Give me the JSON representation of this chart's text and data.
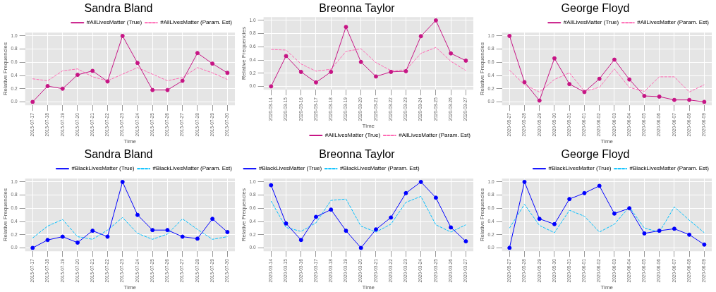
{
  "chart_data": [
    {
      "type": "line",
      "title": "Sandra Bland",
      "xlabel": "Time",
      "ylabel": "Relative Frequencies",
      "categories": [
        "2015-07-17",
        "2015-07-18",
        "2015-07-19",
        "2015-07-20",
        "2015-07-21",
        "2015-07-22",
        "2015-07-23",
        "2015-07-24",
        "2015-07-25",
        "2015-07-26",
        "2015-07-27",
        "2015-07-28",
        "2015-07-29",
        "2015-07-30"
      ],
      "ylim": [
        -0.05,
        1.05
      ],
      "yticks": [
        {
          "value": 0,
          "label": "0.0"
        },
        {
          "value": 0.2,
          "label": "0.2"
        },
        {
          "value": 0.4,
          "label": "0.4"
        },
        {
          "value": 0.6,
          "label": "0.6"
        },
        {
          "value": 0.8,
          "label": "0.8"
        },
        {
          "value": 1,
          "label": "1.0"
        }
      ],
      "grid": true,
      "legend": "top right",
      "series": [
        {
          "name": "#AllLivesMatter (True)",
          "color": "#c71585",
          "marker": "circle",
          "line_style": "solid",
          "values": [
            0,
            0.24,
            0.2,
            0.41,
            0.47,
            0.31,
            1.0,
            0.59,
            0.18,
            0.18,
            0.32,
            0.74,
            0.58,
            0.44
          ]
        },
        {
          "name": "#AllLivesMatter (Param. Est)",
          "color": "#ff69b4",
          "marker": "none",
          "line_style": "dashed",
          "values": [
            0.35,
            0.32,
            0.47,
            0.5,
            0.38,
            0.32,
            0.42,
            0.52,
            0.42,
            0.32,
            0.37,
            0.52,
            0.44,
            0.34
          ]
        }
      ]
    },
    {
      "type": "line",
      "title": "Breonna Taylor",
      "xlabel": "Time",
      "ylabel": "Relative Frequencies",
      "categories": [
        "2020-03-14",
        "2020-03-15",
        "2020-03-16",
        "2020-03-17",
        "2020-03-18",
        "2020-03-19",
        "2020-03-20",
        "2020-03-21",
        "2020-03-22",
        "2020-03-23",
        "2020-03-24",
        "2020-03-25",
        "2020-03-26",
        "2020-03-27"
      ],
      "ylim": [
        -0.05,
        1.05
      ],
      "yticks": [
        {
          "value": 0,
          "label": "0.0"
        },
        {
          "value": 0.2,
          "label": "0.2"
        },
        {
          "value": 0.4,
          "label": "0.4"
        },
        {
          "value": 0.6,
          "label": "0.6"
        },
        {
          "value": 0.8,
          "label": "0.8"
        },
        {
          "value": 1,
          "label": "1.0"
        }
      ],
      "grid": true,
      "legend": "bottom right",
      "series": [
        {
          "name": "#AllLivesMatter (True)",
          "color": "#c71585",
          "marker": "circle",
          "line_style": "solid",
          "values": [
            0,
            0.46,
            0.22,
            0.06,
            0.22,
            0.9,
            0.37,
            0.15,
            0.22,
            0.23,
            0.76,
            1.0,
            0.5,
            0.39
          ]
        },
        {
          "name": "#AllLivesMatter (Param. Est)",
          "color": "#ff69b4",
          "marker": "none",
          "line_style": "dashed",
          "values": [
            0.56,
            0.55,
            0.34,
            0.23,
            0.26,
            0.53,
            0.57,
            0.36,
            0.24,
            0.25,
            0.5,
            0.59,
            0.38,
            0.24
          ]
        }
      ]
    },
    {
      "type": "line",
      "title": "George Floyd",
      "xlabel": "Time",
      "ylabel": "Relative Frequencies",
      "categories": [
        "2020-05-27",
        "2020-05-28",
        "2020-05-29",
        "2020-05-30",
        "2020-05-31",
        "2020-06-01",
        "2020-06-02",
        "2020-06-03",
        "2020-06-04",
        "2020-06-05",
        "2020-06-06",
        "2020-06-07",
        "2020-06-08",
        "2020-06-09"
      ],
      "ylim": [
        -0.05,
        1.05
      ],
      "yticks": [
        {
          "value": 0,
          "label": "0.0"
        },
        {
          "value": 0.2,
          "label": "0.2"
        },
        {
          "value": 0.4,
          "label": "0.4"
        },
        {
          "value": 0.6,
          "label": "0.6"
        },
        {
          "value": 0.8,
          "label": "0.8"
        },
        {
          "value": 1,
          "label": "1.0"
        }
      ],
      "grid": true,
      "legend": "top right",
      "series": [
        {
          "name": "#AllLivesMatter (True)",
          "color": "#c71585",
          "marker": "circle",
          "line_style": "solid",
          "values": [
            1.0,
            0.3,
            0.02,
            0.66,
            0.27,
            0.15,
            0.35,
            0.64,
            0.34,
            0.09,
            0.08,
            0.03,
            0.03,
            0
          ]
        },
        {
          "name": "#AllLivesMatter (Param. Est)",
          "color": "#ff69b4",
          "marker": "none",
          "line_style": "dashed",
          "values": [
            0.48,
            0.26,
            0.15,
            0.34,
            0.44,
            0.16,
            0.22,
            0.5,
            0.22,
            0.16,
            0.38,
            0.38,
            0.15,
            0.26
          ]
        }
      ]
    },
    {
      "type": "line",
      "title": "Sandra Bland",
      "xlabel": "Time",
      "ylabel": "Relative Frequencies",
      "categories": [
        "2015-07-17",
        "2015-07-18",
        "2015-07-19",
        "2015-07-20",
        "2015-07-21",
        "2015-07-22",
        "2015-07-23",
        "2015-07-24",
        "2015-07-25",
        "2015-07-26",
        "2015-07-27",
        "2015-07-28",
        "2015-07-29",
        "2015-07-30"
      ],
      "ylim": [
        -0.05,
        1.05
      ],
      "yticks": [
        {
          "value": 0,
          "label": "0.0"
        },
        {
          "value": 0.2,
          "label": "0.2"
        },
        {
          "value": 0.4,
          "label": "0.4"
        },
        {
          "value": 0.6,
          "label": "0.6"
        },
        {
          "value": 0.8,
          "label": "0.8"
        },
        {
          "value": 1,
          "label": "1.0"
        }
      ],
      "grid": true,
      "legend": "top right",
      "series": [
        {
          "name": "#BlackLivesMatter (True)",
          "color": "#0000ff",
          "marker": "circle",
          "line_style": "solid",
          "values": [
            0,
            0.12,
            0.17,
            0.08,
            0.26,
            0.17,
            1.0,
            0.5,
            0.27,
            0.27,
            0.17,
            0.14,
            0.44,
            0.24
          ]
        },
        {
          "name": "#BlackLivesMatter (Param. Est)",
          "color": "#00bfff",
          "marker": "none",
          "line_style": "dashed",
          "values": [
            0.15,
            0.33,
            0.43,
            0.17,
            0.13,
            0.27,
            0.46,
            0.22,
            0.13,
            0.21,
            0.44,
            0.28,
            0.13,
            0.17
          ]
        }
      ]
    },
    {
      "type": "line",
      "title": "Breonna Taylor",
      "xlabel": "Time",
      "ylabel": "Relative Frequencies",
      "categories": [
        "2020-03-14",
        "2020-03-15",
        "2020-03-16",
        "2020-03-17",
        "2020-03-18",
        "2020-03-19",
        "2020-03-20",
        "2020-03-21",
        "2020-03-22",
        "2020-03-23",
        "2020-03-24",
        "2020-03-25",
        "2020-03-26",
        "2020-03-27"
      ],
      "ylim": [
        -0.05,
        1.05
      ],
      "yticks": [
        {
          "value": 0,
          "label": "0.0"
        },
        {
          "value": 0.2,
          "label": "0.2"
        },
        {
          "value": 0.4,
          "label": "0.4"
        },
        {
          "value": 0.6,
          "label": "0.6"
        },
        {
          "value": 0.8,
          "label": "0.8"
        },
        {
          "value": 1,
          "label": "1.0"
        }
      ],
      "grid": true,
      "legend": "top left",
      "series": [
        {
          "name": "#BlackLivesMatter (True)",
          "color": "#0000ff",
          "marker": "circle",
          "line_style": "solid",
          "values": [
            0.95,
            0.37,
            0.12,
            0.47,
            0.58,
            0.26,
            0,
            0.28,
            0.46,
            0.83,
            1.0,
            0.76,
            0.31,
            0.1
          ]
        },
        {
          "name": "#BlackLivesMatter (Param. Est)",
          "color": "#00bfff",
          "marker": "none",
          "line_style": "dashed",
          "values": [
            0.71,
            0.31,
            0.25,
            0.38,
            0.72,
            0.74,
            0.33,
            0.24,
            0.36,
            0.69,
            0.78,
            0.35,
            0.24,
            0.35
          ]
        }
      ]
    },
    {
      "type": "line",
      "title": "George Floyd",
      "xlabel": "Time",
      "ylabel": "Relative Frequencies",
      "categories": [
        "2020-05-27",
        "2020-05-28",
        "2020-05-29",
        "2020-05-30",
        "2020-05-31",
        "2020-06-01",
        "2020-06-02",
        "2020-06-03",
        "2020-06-04",
        "2020-06-05",
        "2020-06-06",
        "2020-06-07",
        "2020-06-08",
        "2020-06-09"
      ],
      "ylim": [
        -0.05,
        1.05
      ],
      "yticks": [
        {
          "value": 0,
          "label": "0.0"
        },
        {
          "value": 0.2,
          "label": "0.2"
        },
        {
          "value": 0.4,
          "label": "0.4"
        },
        {
          "value": 0.6,
          "label": "0.6"
        },
        {
          "value": 0.8,
          "label": "0.8"
        },
        {
          "value": 1,
          "label": "1.0"
        }
      ],
      "grid": true,
      "legend": "top right",
      "series": [
        {
          "name": "#BlackLivesMatter (True)",
          "color": "#0000ff",
          "marker": "circle",
          "line_style": "solid",
          "values": [
            0,
            1.0,
            0.44,
            0.36,
            0.74,
            0.83,
            0.94,
            0.52,
            0.6,
            0.22,
            0.26,
            0.29,
            0.2,
            0.05
          ]
        },
        {
          "name": "#BlackLivesMatter (Param. Est)",
          "color": "#00bfff",
          "marker": "none",
          "line_style": "dashed",
          "values": [
            0.3,
            0.66,
            0.34,
            0.23,
            0.57,
            0.48,
            0.24,
            0.36,
            0.62,
            0.3,
            0.24,
            0.62,
            0.42,
            0.23
          ]
        }
      ]
    }
  ]
}
